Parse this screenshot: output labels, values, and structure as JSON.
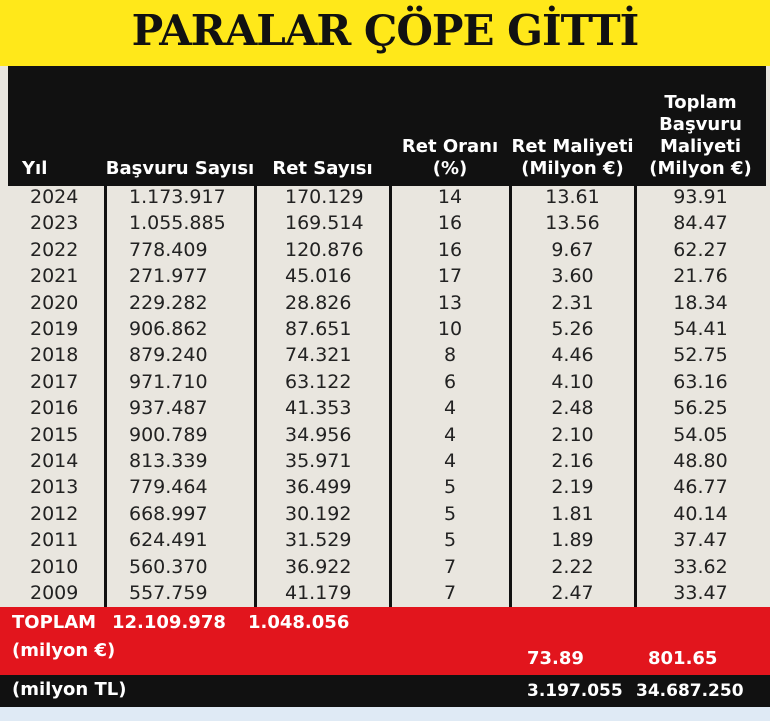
{
  "title": "PARALAR ÇÖPE GİTTİ",
  "table": {
    "headers": [
      "Yıl",
      "Başvuru Sayısı",
      "Ret Sayısı",
      "Ret Oranı (%)",
      "Ret Maliyeti (Milyon €)",
      "Toplam Başvuru Maliyeti (Milyon €)"
    ],
    "rows": [
      [
        "2024",
        "1.173.917",
        "170.129",
        "14",
        "13.61",
        "93.91"
      ],
      [
        "2023",
        "1.055.885",
        "169.514",
        "16",
        "13.56",
        "84.47"
      ],
      [
        "2022",
        "778.409",
        "120.876",
        "16",
        "9.67",
        "62.27"
      ],
      [
        "2021",
        "271.977",
        "45.016",
        "17",
        "3.60",
        "21.76"
      ],
      [
        "2020",
        "229.282",
        "28.826",
        "13",
        "2.31",
        "18.34"
      ],
      [
        "2019",
        "906.862",
        "87.651",
        "10",
        "5.26",
        "54.41"
      ],
      [
        "2018",
        "879.240",
        "74.321",
        "8",
        "4.46",
        "52.75"
      ],
      [
        "2017",
        "971.710",
        "63.122",
        "6",
        "4.10",
        "63.16"
      ],
      [
        "2016",
        "937.487",
        "41.353",
        "4",
        "2.48",
        "56.25"
      ],
      [
        "2015",
        "900.789",
        "34.956",
        "4",
        "2.10",
        "54.05"
      ],
      [
        "2014",
        "813.339",
        "35.971",
        "4",
        "2.16",
        "48.80"
      ],
      [
        "2013",
        "779.464",
        "36.499",
        "5",
        "2.19",
        "46.77"
      ],
      [
        "2012",
        "668.997",
        "30.192",
        "5",
        "1.81",
        "40.14"
      ],
      [
        "2011",
        "624.491",
        "31.529",
        "5",
        "1.89",
        "37.47"
      ],
      [
        "2010",
        "560.370",
        "36.922",
        "7",
        "2.22",
        "33.62"
      ],
      [
        "2009",
        "557.759",
        "41.179",
        "7",
        "2.47",
        "33.47"
      ]
    ],
    "total": {
      "label": "TOPLAM",
      "basvuru": "12.109.978",
      "ret": "1.048.056",
      "euro_label": "(milyon €)",
      "euro_ret_maliyeti": "73.89",
      "euro_toplam": "801.65",
      "tl_label": "(milyon TL)",
      "tl_ret_maliyeti": "3.197.055",
      "tl_toplam": "34.687.250"
    }
  }
}
